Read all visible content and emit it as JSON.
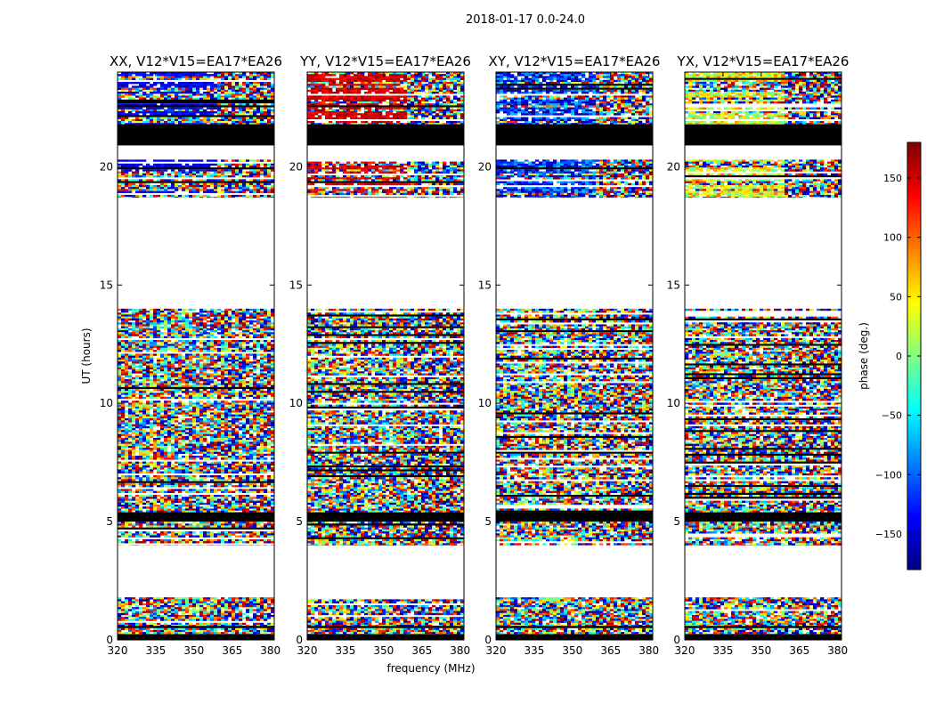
{
  "figure": {
    "suptitle": "2018-01-17 0.0-24.0",
    "xlabel": "frequency (MHz)",
    "ylabel": "UT (hours)"
  },
  "chart_data": {
    "type": "heatmap",
    "suptitle": "2018-01-17 0.0-24.0",
    "xlabel": "frequency (MHz)",
    "ylabel": "UT (hours)",
    "xlim": [
      320,
      381.5
    ],
    "ylim": [
      0,
      24
    ],
    "xticks": [
      320,
      335,
      350,
      365,
      380
    ],
    "yticks": [
      0,
      5,
      10,
      15,
      20
    ],
    "colormap": "jet",
    "colorbar": {
      "label": "phase (deg.)",
      "range": [
        -180,
        180
      ],
      "ticks": [
        -150,
        -100,
        -50,
        0,
        50,
        100,
        150
      ]
    },
    "panels": [
      {
        "title": "XX, V12*V15=EA17*EA26",
        "bias_phase": -140,
        "bias_spread": 40,
        "cross_phase": -120
      },
      {
        "title": "YY, V12*V15=EA17*EA26",
        "bias_phase": 150,
        "bias_spread": 45,
        "cross_phase": 160
      },
      {
        "title": "XY, V12*V15=EA17*EA26",
        "bias_phase": -120,
        "bias_spread": 120,
        "cross_phase": -110
      },
      {
        "title": "YX, V12*V15=EA17*EA26",
        "bias_phase": 40,
        "bias_spread": 120,
        "cross_phase": -30
      }
    ],
    "data_blocks_ut": [
      [
        0.0,
        0.25,
        "flag"
      ],
      [
        0.25,
        0.5,
        "data"
      ],
      [
        0.5,
        0.6,
        "flag"
      ],
      [
        0.6,
        1.8,
        "data"
      ],
      [
        4.0,
        5.0,
        "data"
      ],
      [
        5.0,
        5.4,
        "flag"
      ],
      [
        5.4,
        8.2,
        "data"
      ],
      [
        8.2,
        14.0,
        "data"
      ],
      [
        18.7,
        20.3,
        "data"
      ],
      [
        20.9,
        21.8,
        "flag"
      ],
      [
        21.8,
        24.0,
        "data"
      ]
    ]
  }
}
